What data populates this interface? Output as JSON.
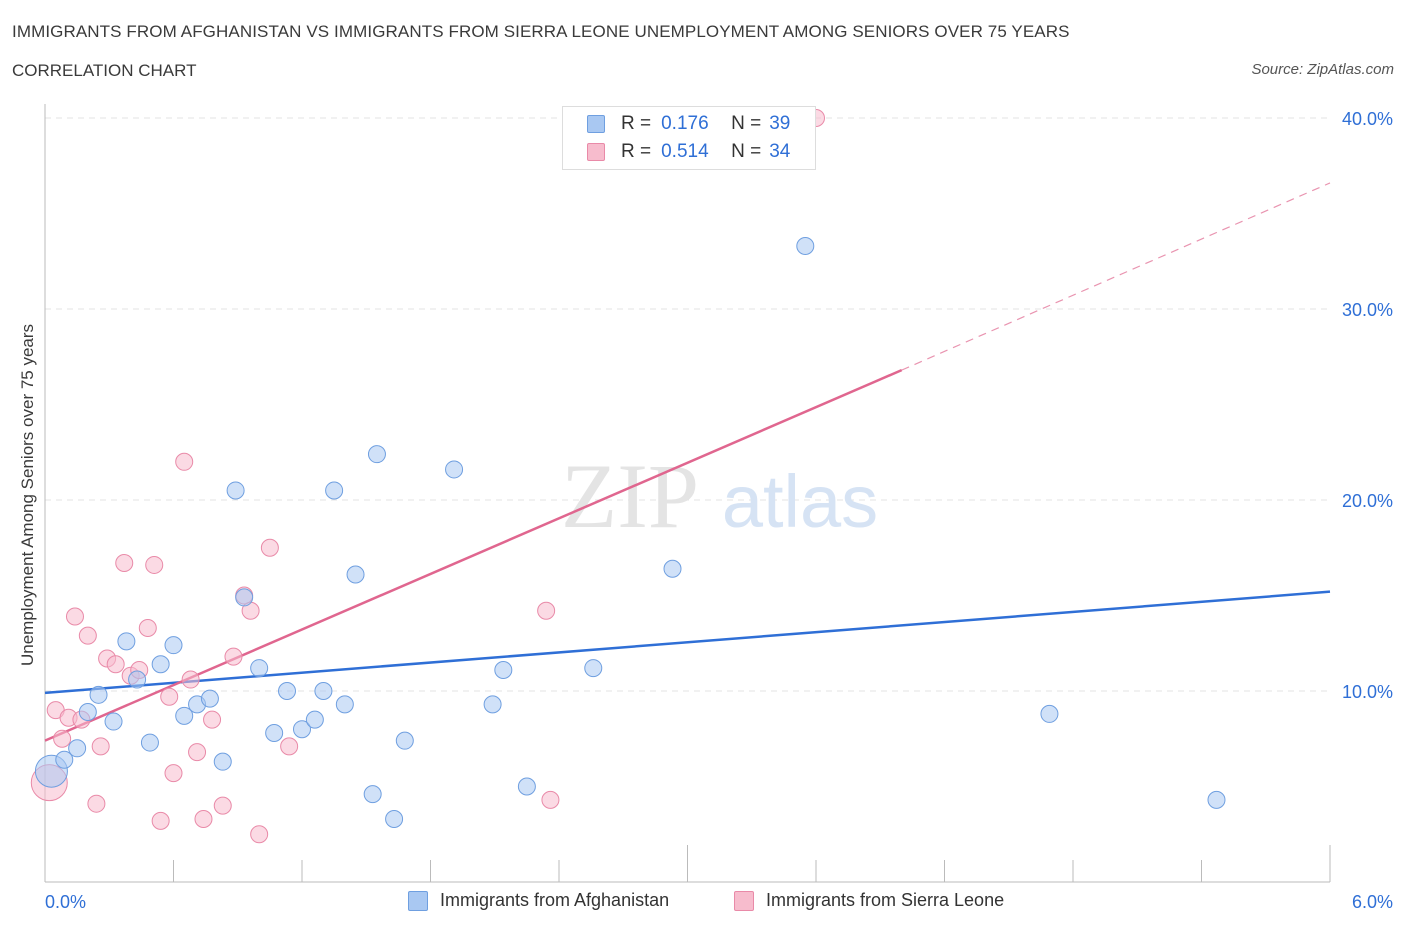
{
  "header": {
    "title": "IMMIGRANTS FROM AFGHANISTAN VS IMMIGRANTS FROM SIERRA LEONE UNEMPLOYMENT AMONG SENIORS OVER 75 YEARS",
    "subtitle": "CORRELATION CHART",
    "source": "Source: ZipAtlas.com"
  },
  "watermark": {
    "zip": "ZIP",
    "atlas": "atlas"
  },
  "legend": {
    "r_label": "R =",
    "n_label": "N =",
    "afghanistan": {
      "r": "0.176",
      "n": "39"
    },
    "sierra_leone": {
      "r": "0.514",
      "n": "34"
    }
  },
  "colors": {
    "afghanistan_fill": "#a9c8f2",
    "afghanistan_stroke": "#6f9fe0",
    "afghanistan_line": "#2f6fd6",
    "sierra_fill": "#f7bccd",
    "sierra_stroke": "#e98aa8",
    "sierra_line": "#e0668f",
    "tick_label": "#2f6fd6"
  },
  "chart_data": {
    "type": "scatter",
    "title": "IMMIGRANTS FROM AFGHANISTAN VS IMMIGRANTS FROM SIERRA LEONE UNEMPLOYMENT AMONG SENIORS OVER 75 YEARS",
    "subtitle": "CORRELATION CHART",
    "xlabel": "",
    "ylabel": "Unemployment Among Seniors over 75 years",
    "xlim": [
      0,
      6
    ],
    "ylim": [
      0,
      40
    ],
    "x_tick_labels": [
      "0.0%",
      "6.0%"
    ],
    "y_tick_labels": [
      "10.0%",
      "20.0%",
      "30.0%",
      "40.0%"
    ],
    "y_ticks": [
      10,
      20,
      30,
      40
    ],
    "grid": true,
    "legend_position": "top-center",
    "series": [
      {
        "name": "Immigrants from Afghanistan",
        "points": [
          [
            0.03,
            5.8
          ],
          [
            0.09,
            6.4
          ],
          [
            0.15,
            7.0
          ],
          [
            0.2,
            8.9
          ],
          [
            0.25,
            9.8
          ],
          [
            0.32,
            8.4
          ],
          [
            0.38,
            12.6
          ],
          [
            0.43,
            10.6
          ],
          [
            0.49,
            7.3
          ],
          [
            0.54,
            11.4
          ],
          [
            0.6,
            12.4
          ],
          [
            0.65,
            8.7
          ],
          [
            0.71,
            9.3
          ],
          [
            0.77,
            9.6
          ],
          [
            0.83,
            6.3
          ],
          [
            0.89,
            20.5
          ],
          [
            0.93,
            14.9
          ],
          [
            1.0,
            11.2
          ],
          [
            1.07,
            7.8
          ],
          [
            1.13,
            10.0
          ],
          [
            1.2,
            8.0
          ],
          [
            1.26,
            8.5
          ],
          [
            1.3,
            10.0
          ],
          [
            1.35,
            20.5
          ],
          [
            1.4,
            9.3
          ],
          [
            1.45,
            16.1
          ],
          [
            1.53,
            4.6
          ],
          [
            1.55,
            22.4
          ],
          [
            1.63,
            3.3
          ],
          [
            1.68,
            7.4
          ],
          [
            1.91,
            21.6
          ],
          [
            2.09,
            9.3
          ],
          [
            2.14,
            11.1
          ],
          [
            2.25,
            5.0
          ],
          [
            2.56,
            11.2
          ],
          [
            2.93,
            16.4
          ],
          [
            3.55,
            33.3
          ],
          [
            4.69,
            8.8
          ],
          [
            5.47,
            4.3
          ]
        ],
        "trendline": {
          "x": [
            0,
            6
          ],
          "y": [
            9.9,
            15.2
          ]
        }
      },
      {
        "name": "Immigrants from Sierra Leone",
        "points": [
          [
            0.02,
            5.2
          ],
          [
            0.05,
            9.0
          ],
          [
            0.08,
            7.5
          ],
          [
            0.11,
            8.6
          ],
          [
            0.14,
            13.9
          ],
          [
            0.17,
            8.5
          ],
          [
            0.2,
            12.9
          ],
          [
            0.24,
            4.1
          ],
          [
            0.26,
            7.1
          ],
          [
            0.29,
            11.7
          ],
          [
            0.33,
            11.4
          ],
          [
            0.37,
            16.7
          ],
          [
            0.4,
            10.8
          ],
          [
            0.44,
            11.1
          ],
          [
            0.48,
            13.3
          ],
          [
            0.51,
            16.6
          ],
          [
            0.54,
            3.2
          ],
          [
            0.58,
            9.7
          ],
          [
            0.6,
            5.7
          ],
          [
            0.65,
            22.0
          ],
          [
            0.68,
            10.6
          ],
          [
            0.71,
            6.8
          ],
          [
            0.74,
            3.3
          ],
          [
            0.78,
            8.5
          ],
          [
            0.83,
            4.0
          ],
          [
            0.88,
            11.8
          ],
          [
            0.93,
            15.0
          ],
          [
            0.96,
            14.2
          ],
          [
            1.0,
            2.5
          ],
          [
            1.05,
            17.5
          ],
          [
            1.14,
            7.1
          ],
          [
            2.34,
            14.2
          ],
          [
            2.36,
            4.3
          ],
          [
            3.6,
            40.0
          ]
        ],
        "trendline": {
          "x": [
            0,
            4.0
          ],
          "y": [
            7.4,
            26.8
          ]
        },
        "trendline_dashed": {
          "x": [
            4.0,
            6.0
          ],
          "y": [
            26.8,
            36.6
          ]
        }
      }
    ]
  }
}
